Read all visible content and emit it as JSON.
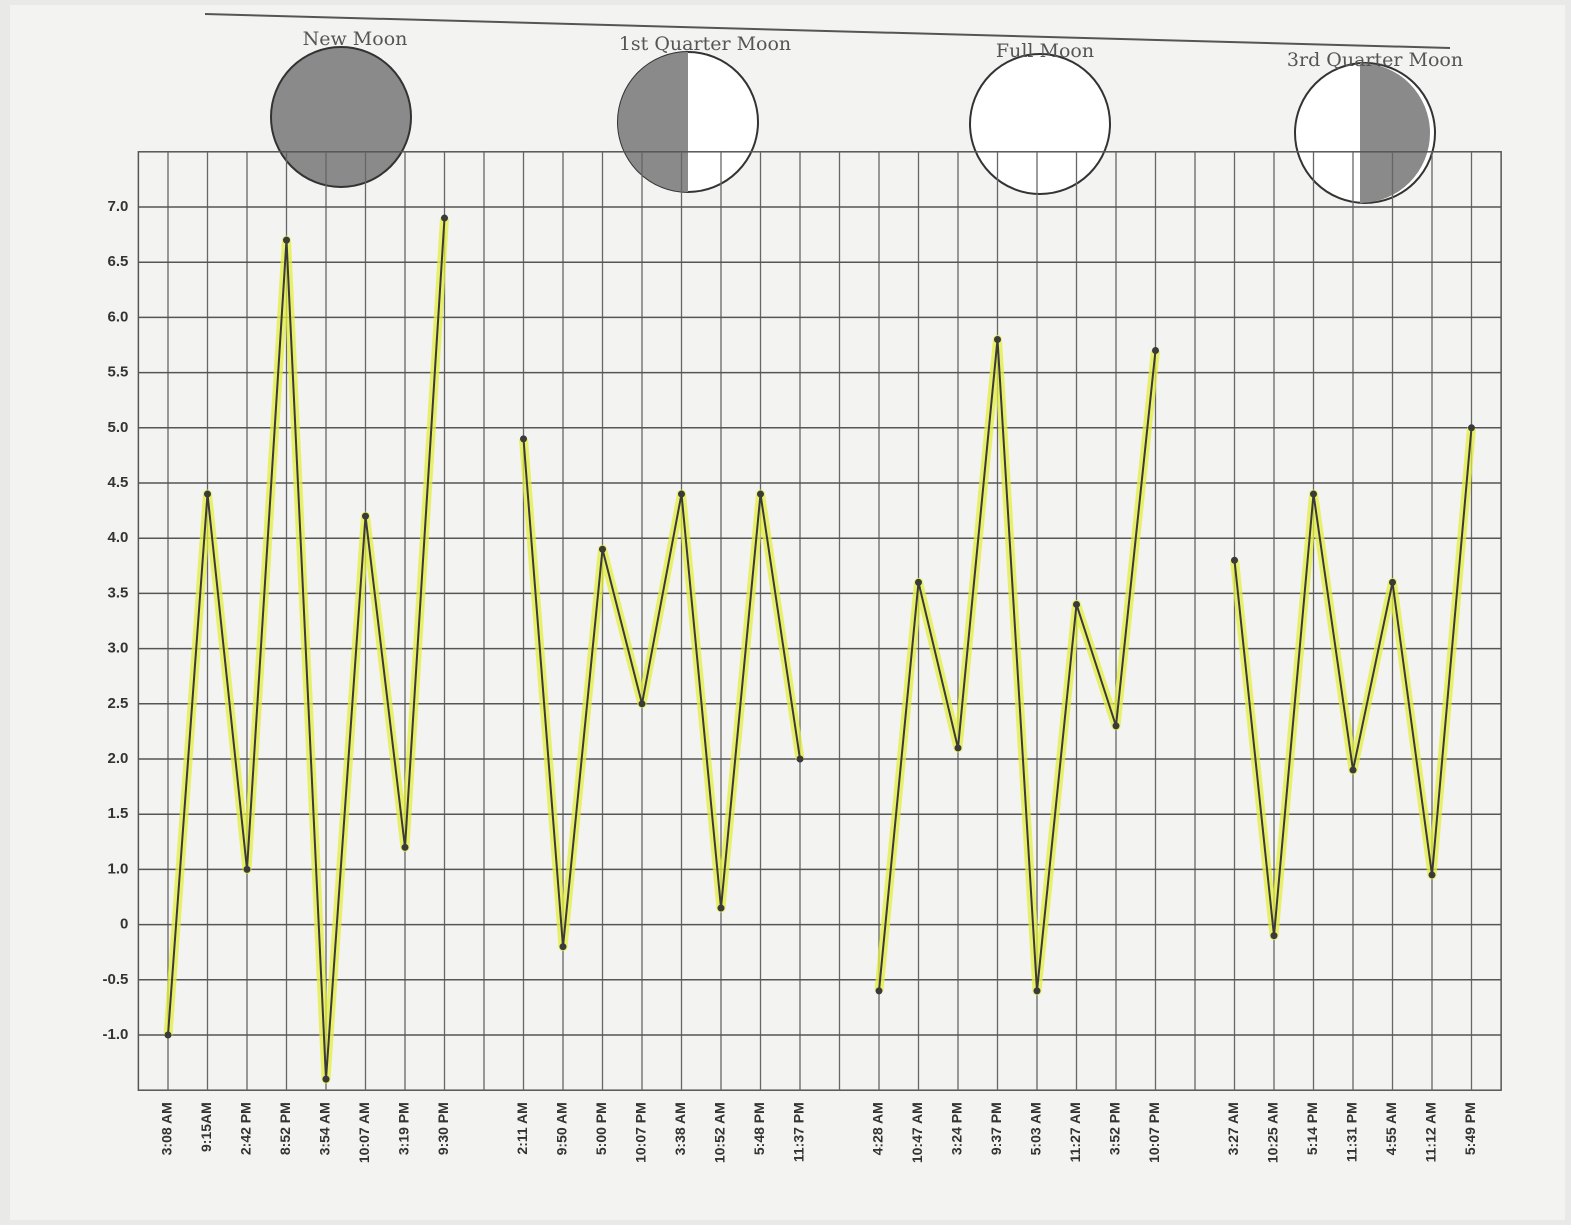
{
  "chart_data": {
    "type": "line",
    "annotations": [
      "New Moon",
      "1st Quarter Moon",
      "Full Moon",
      "3rd Quarter Moon"
    ],
    "categories": [
      "3:08 AM",
      "9:15AM",
      "2:42 PM",
      "8:52 PM",
      "3:54 AM",
      "10:07 AM",
      "3:19 PM",
      "9:30 PM",
      null,
      "2:11 AM",
      "9:50 AM",
      "5:00 PM",
      "10:07 PM",
      "3:38 AM",
      "10:52 AM",
      "5:48 PM",
      "11:37 PM",
      null,
      "4:28 AM",
      "10:47 AM",
      "3:24 PM",
      "9:37 PM",
      "5:03 AM",
      "11:27 AM",
      "3:52 PM",
      "10:07 PM",
      null,
      "3:27 AM",
      "10:25 AM",
      "5:14 PM",
      "11:31 PM",
      "4:55 AM",
      "11:12 AM",
      "5:49 PM"
    ],
    "series": [
      {
        "color": "#3a3a3a",
        "highlight": "#e4ee3a",
        "values": [
          -1.0,
          4.4,
          1.0,
          6.7,
          -1.4,
          4.2,
          1.2,
          6.9,
          null,
          4.9,
          -0.2,
          3.9,
          2.5,
          4.4,
          0.3,
          4.4,
          2.0,
          null,
          -0.6,
          3.6,
          2.1,
          5.8,
          -0.6,
          3.4,
          2.3,
          5.7,
          null,
          3.8,
          -0.1,
          4.4,
          1.9,
          3.6,
          0.9,
          5.0
        ]
      }
    ],
    "ylim": [
      -1.5,
      7.5
    ],
    "yticks": [
      {
        "value": 7,
        "label": "7.0"
      },
      6.5,
      {
        "value": 6,
        "label": "6.0"
      },
      5.5,
      {
        "value": 5,
        "label": "5.0"
      },
      4.5,
      {
        "value": 4,
        "label": "4.0"
      },
      3.5,
      {
        "value": 3,
        "label": "3.0"
      },
      2.5,
      {
        "value": 2,
        "label": "2.0"
      },
      1.5,
      {
        "value": 1,
        "label": "1.0"
      },
      0,
      -0.5,
      {
        "value": -1,
        "label": "-1.0"
      }
    ],
    "grid": true
  }
}
